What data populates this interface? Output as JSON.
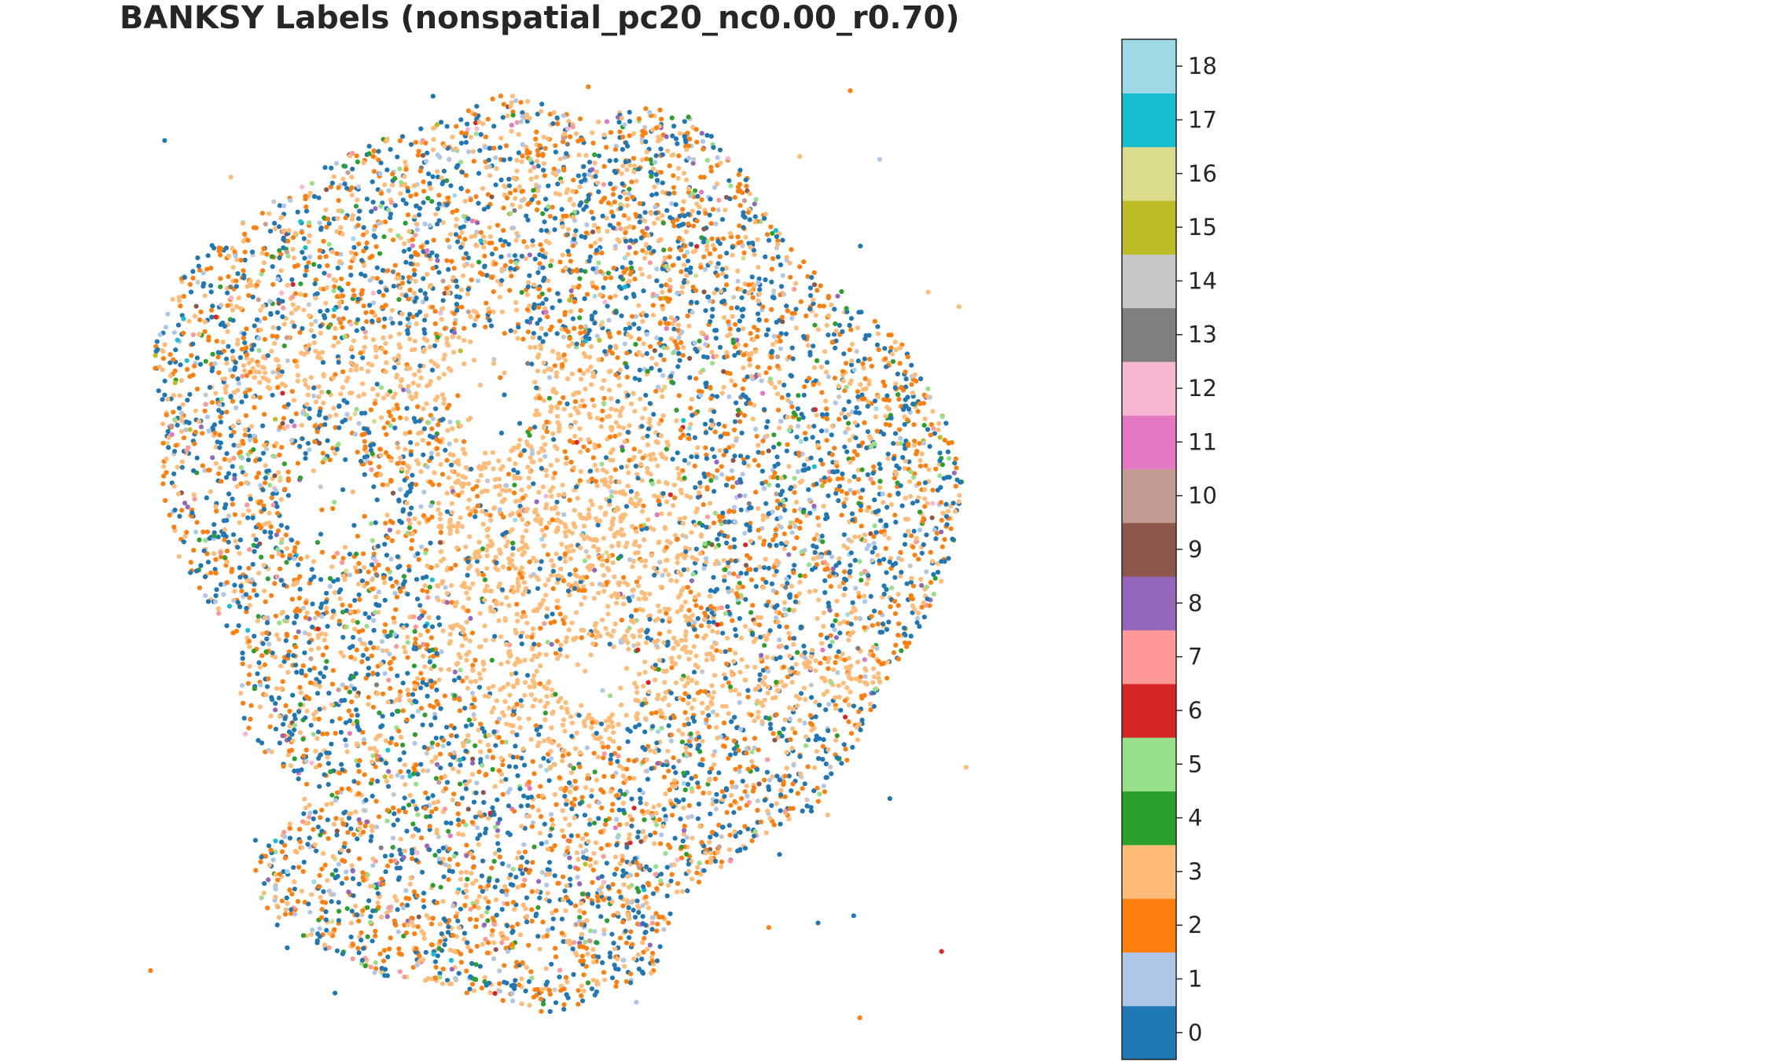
{
  "chart_data": {
    "type": "scatter",
    "title": "BANKSY Labels (nonspatial_pc20_nc0.00_r0.70)",
    "xlabel": "",
    "ylabel": "",
    "axes_visible": false,
    "grid": false,
    "legend": "colorbar-right",
    "colormap": "tab20",
    "colorbar": {
      "ticks": [
        "0",
        "1",
        "2",
        "3",
        "4",
        "5",
        "6",
        "7",
        "8",
        "9",
        "10",
        "11",
        "12",
        "13",
        "14",
        "15",
        "16",
        "17",
        "18"
      ],
      "colors": [
        "#1f77b4",
        "#aec7e8",
        "#ff7f0e",
        "#ffbb78",
        "#2ca02c",
        "#98df8a",
        "#d62728",
        "#ff9896",
        "#9467bd",
        "#8c564b",
        "#c49c94",
        "#e377c2",
        "#f7b6d2",
        "#7f7f7f",
        "#c7c7c7",
        "#bcbd22",
        "#dbdb8d",
        "#17becf",
        "#9edae5"
      ]
    },
    "cluster_proportions": {
      "0": 0.3,
      "1": 0.06,
      "2": 0.28,
      "3": 0.24,
      "4": 0.035,
      "5": 0.02,
      "6": 0.004,
      "7": 0.012,
      "8": 0.012,
      "9": 0.004,
      "10": 0.006,
      "11": 0.006,
      "12": 0.003,
      "13": 0.003,
      "14": 0.012,
      "15": 0.003,
      "16": 0.003,
      "17": 0.002,
      "18": 0.004
    },
    "approx_point_count": 9000
  }
}
